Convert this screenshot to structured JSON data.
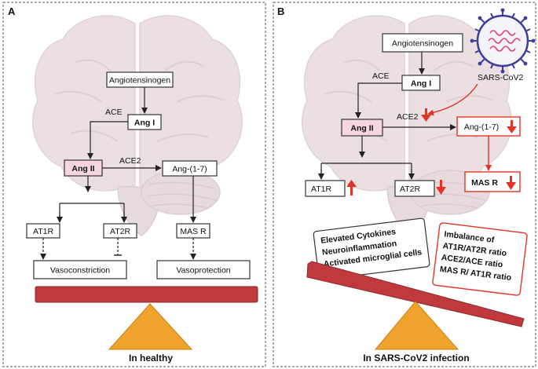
{
  "panel_a": {
    "letter": "A",
    "caption": "In healthy",
    "nodes": {
      "angiotensinogen": "Angiotensinogen",
      "ang1": "Ang I",
      "ang2": "Ang II",
      "ang17": "Ang-(1-7)",
      "at1r": "AT1R",
      "at2r": "AT2R",
      "masr": "MAS R",
      "vasoconstriction": "Vasoconstriction",
      "vasoprotection": "Vasoprotection"
    },
    "enzymes": {
      "ace": "ACE",
      "ace2": "ACE2"
    }
  },
  "panel_b": {
    "letter": "B",
    "caption": "In SARS-CoV2 infection",
    "virus_label": "SARS-CoV2",
    "nodes": {
      "angiotensinogen": "Angiotensinogen",
      "ang1": "Ang I",
      "ang2": "Ang II",
      "ang17": "Ang-(1-7)",
      "at1r": "AT1R",
      "at2r": "AT2R",
      "masr": "MAS R"
    },
    "enzymes": {
      "ace": "ACE",
      "ace2": "ACE2"
    },
    "left_box": [
      "Elevated Cytokines",
      "Neuroinflammation",
      "Activated  microglial cells"
    ],
    "right_box": [
      "Imbalance of",
      "AT1R/AT2R ratio",
      "ACE2/ACE  ratio",
      "MAS R/ AT1R ratio"
    ]
  },
  "colors": {
    "beam": "#c0393d",
    "fulcrum": "#f0a32c",
    "highlight": "#f7d6df",
    "red_arrow": "#e53226",
    "virus": "#3b3f9a"
  }
}
